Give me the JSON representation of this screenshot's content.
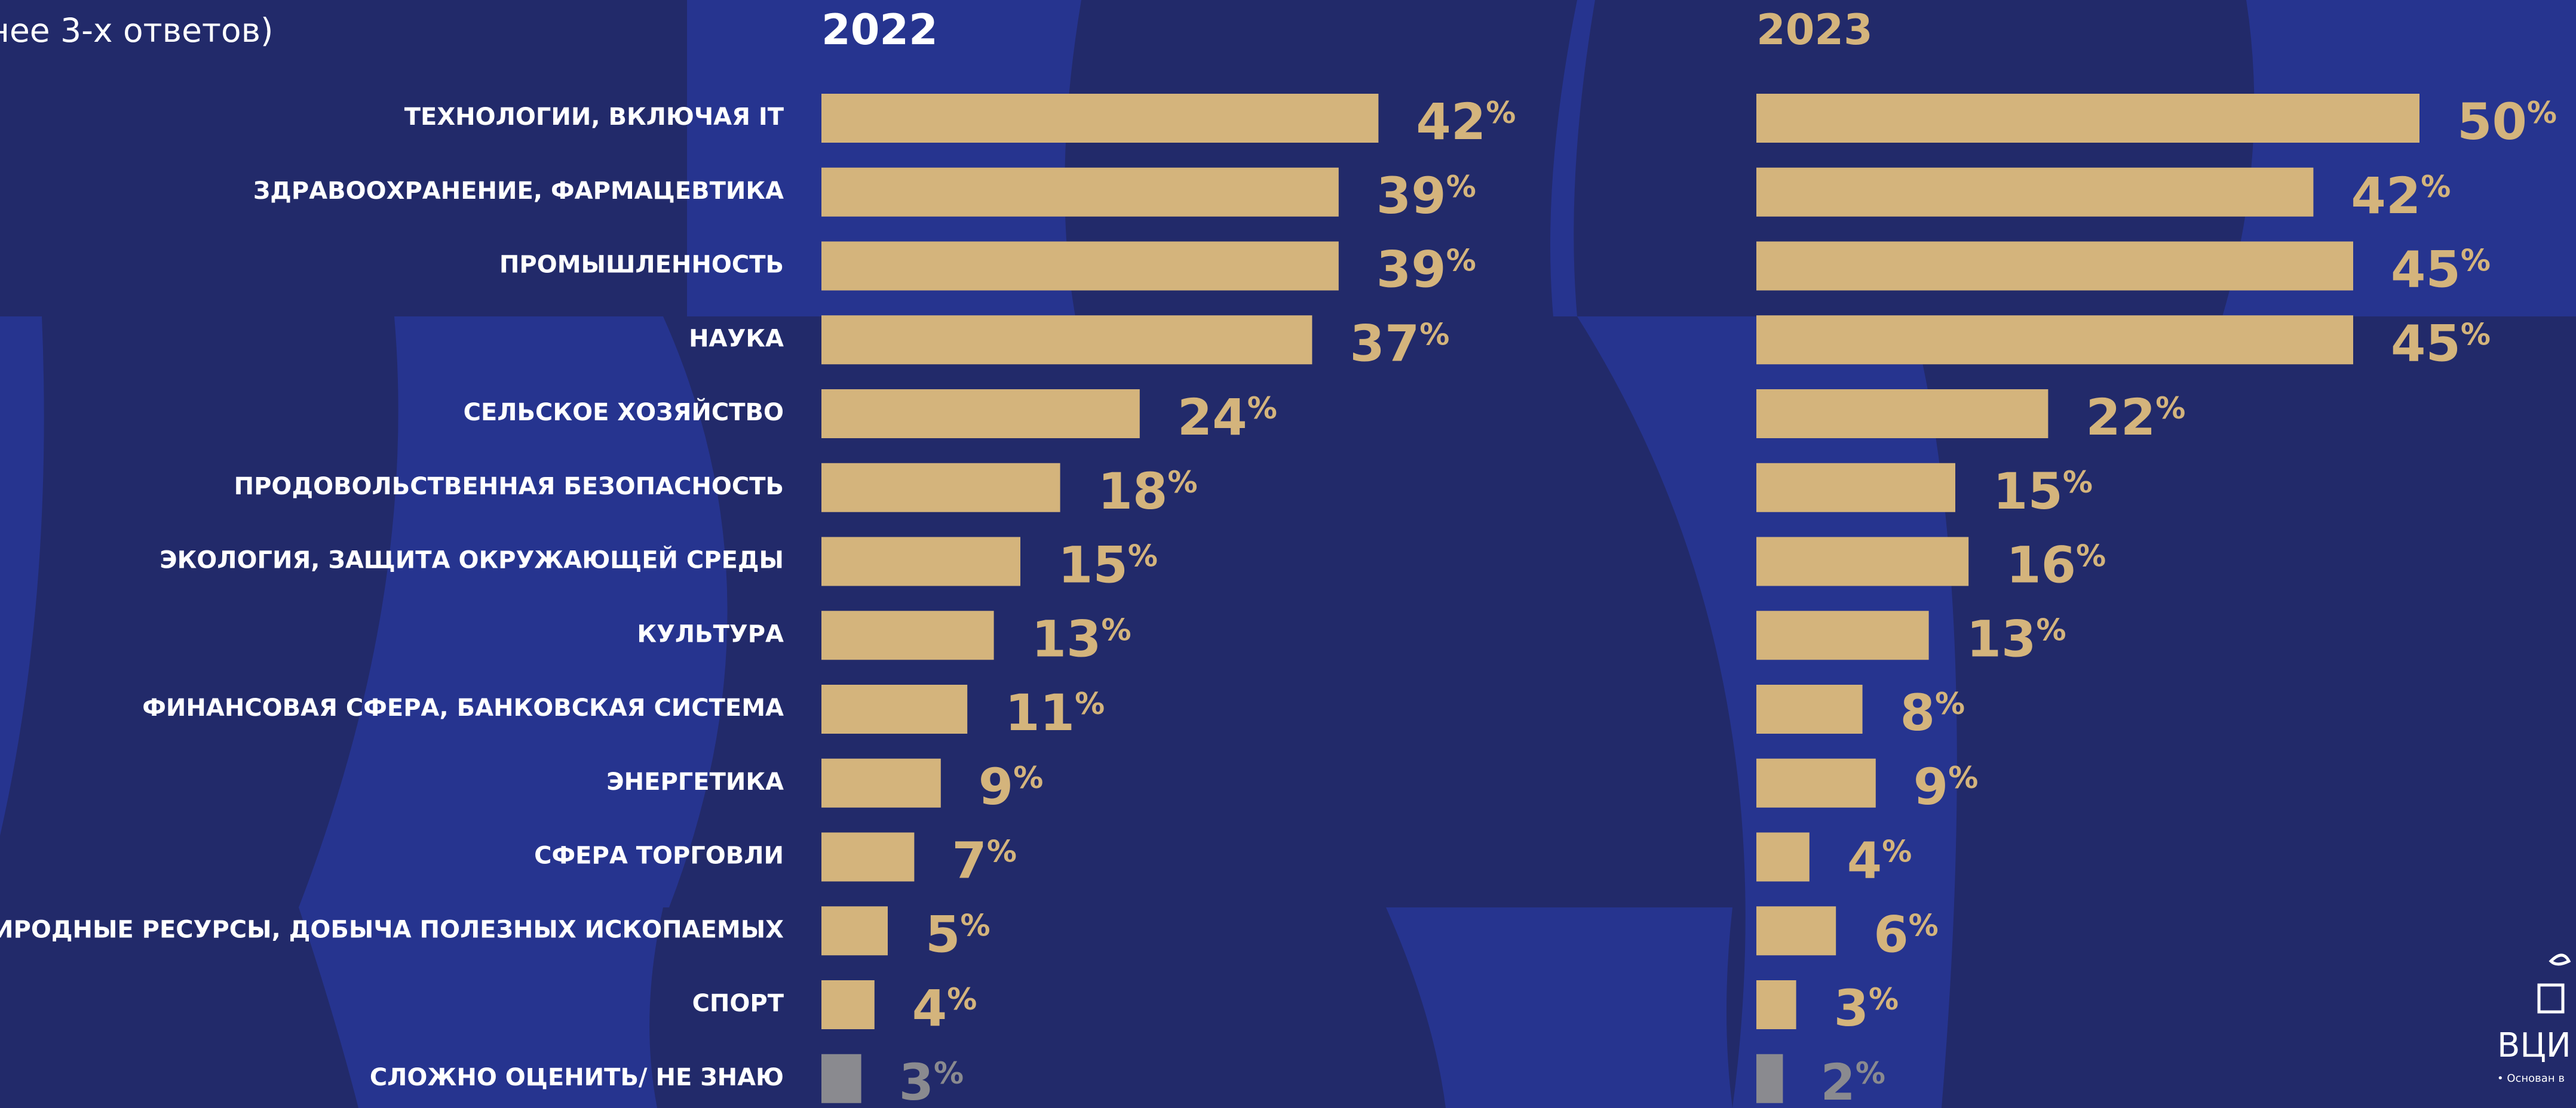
{
  "subtitle": "нее 3-х ответов)",
  "categories": [
    "ТЕХНОЛОГИИ, ВКЛЮЧАЯ IT",
    "ЗДРАВООХРАНЕНИЕ, ФАРМАЦЕВТИКА",
    "ПРОМЫШЛЕННОСТЬ",
    "НАУКА",
    "СЕЛЬСКОЕ ХОЗЯЙСТВО",
    "ПРОДОВОЛЬСТВЕННАЯ БЕЗОПАСНОСТЬ",
    "ЭКОЛОГИЯ, ЗАЩИТА ОКРУЖАЮЩЕЙ СРЕДЫ",
    "КУЛЬТУРА",
    "ФИНАНСОВАЯ СФЕРА, БАНКОВСКАЯ СИСТЕМА",
    "ЭНЕРГЕТИКА",
    "СФЕРА ТОРГОВЛИ",
    "ПРИРОДНЫЕ РЕСУРСЫ, ДОБЫЧА ПОЛЕЗНЫХ ИСКОПАЕМЫХ",
    "СПОРТ",
    "СЛОЖНО ОЦЕНИТЬ/ НЕ ЗНАЮ"
  ],
  "chart_data": [
    {
      "type": "bar",
      "orientation": "horizontal",
      "title": "2022",
      "values": [
        42,
        39,
        39,
        37,
        24,
        18,
        15,
        13,
        11,
        9,
        7,
        5,
        4,
        3
      ],
      "value_labels": [
        "42%",
        "39%",
        "39%",
        "37%",
        "24%",
        "18%",
        "15%",
        "13%",
        "11%",
        "9%",
        "7%",
        "5%",
        "4%",
        "3%"
      ],
      "colors": [
        "#d4b47c",
        "#d4b47c",
        "#d4b47c",
        "#d4b47c",
        "#d4b47c",
        "#d4b47c",
        "#d4b47c",
        "#d4b47c",
        "#d4b47c",
        "#d4b47c",
        "#d4b47c",
        "#d4b47c",
        "#d4b47c",
        "#8a8a8f"
      ]
    },
    {
      "type": "bar",
      "orientation": "horizontal",
      "title": "2023",
      "values": [
        50,
        42,
        45,
        45,
        22,
        15,
        16,
        13,
        8,
        9,
        4,
        6,
        3,
        2
      ],
      "value_labels": [
        "50%",
        "42%",
        "45%",
        "45%",
        "22%",
        "15%",
        "16%",
        "13%",
        "8%",
        "9%",
        "4%",
        "6%",
        "3%",
        "2%"
      ],
      "colors": [
        "#d4b47c",
        "#d4b47c",
        "#d4b47c",
        "#d4b47c",
        "#d4b47c",
        "#d4b47c",
        "#d4b47c",
        "#d4b47c",
        "#d4b47c",
        "#d4b47c",
        "#d4b47c",
        "#d4b47c",
        "#d4b47c",
        "#8a8a8f"
      ]
    }
  ],
  "logo": {
    "name": "ВЦИ",
    "tagline": "• Основан в"
  }
}
